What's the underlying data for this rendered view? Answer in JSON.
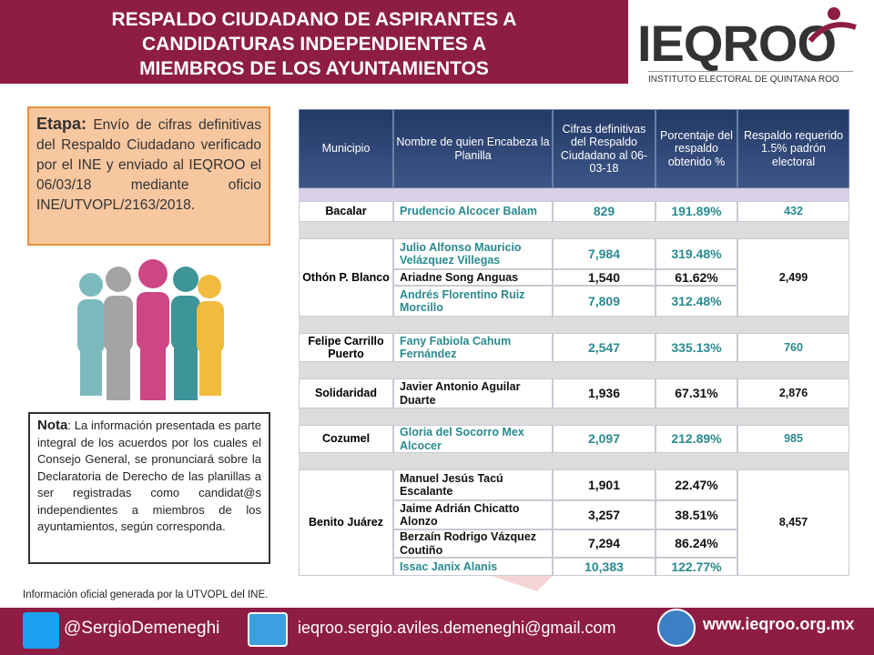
{
  "header": {
    "title": [
      "RESPALDO CIUDADANO DE ASPIRANTES  A",
      "CANDIDATURAS INDEPENDIENTES A",
      "MIEMBROS DE LOS AYUNTAMIENTOS"
    ],
    "logo": "IEQROO",
    "logo_subtitle": "INSTITUTO ELECTORAL DE QUINTANA ROO"
  },
  "etapa": {
    "label": "Etapa:",
    "text": "Envío de cifras definitivas del Respaldo Ciudadano verificado por el INE y enviado al IEQROO el 06/03/18 mediante oficio INE/UTVOPL/2163/2018."
  },
  "nota": {
    "label": "Nota",
    "text": ": La información presentada es parte integral de los acuerdos por los cuales el Consejo General, se pronunciará sobre la Declaratoria de Derecho de las planillas a ser registradas como candidat@s independientes a miembros de los ayuntamientos, según corresponda."
  },
  "table": {
    "headers": [
      "Municipio",
      "Nombre de quien Encabeza la Planilla",
      "Cifras definitivas del Respaldo Ciudadano al 06-03-18",
      "Porcentaje del respaldo obtenido %",
      "Respaldo requerido 1.5% padrón electoral"
    ],
    "groups": [
      {
        "municipio": "Bacalar",
        "respaldo": "432",
        "candidates": [
          {
            "nombre": "Prudencio Alcocer Balam",
            "cifras": "829",
            "porcentaje": "191.89%",
            "color": "#2a8a8f"
          }
        ]
      },
      {
        "municipio": "Othón P. Blanco",
        "respaldo": "2,499",
        "candidates": [
          {
            "nombre": "Julio Alfonso Mauricio Velázquez Villegas",
            "cifras": "7,984",
            "porcentaje": "319.48%",
            "color": "#2a8a8f"
          },
          {
            "nombre": "Ariadne Song Anguas",
            "cifras": "1,540",
            "porcentaje": "61.62%",
            "color": "#111111"
          },
          {
            "nombre": "Andrés Florentino Ruiz Morcillo",
            "cifras": "7,809",
            "porcentaje": "312.48%",
            "color": "#2a8a8f"
          }
        ]
      },
      {
        "municipio": "Felipe Carrillo Puerto",
        "respaldo": "760",
        "candidates": [
          {
            "nombre": "Fany Fabiola Cahum Fernández",
            "cifras": "2,547",
            "porcentaje": "335.13%",
            "color": "#2a8a8f"
          }
        ]
      },
      {
        "municipio": "Solidaridad",
        "respaldo": "2,876",
        "candidates": [
          {
            "nombre": "Javier Antonio Aguilar Duarte",
            "cifras": "1,936",
            "porcentaje": "67.31%",
            "color": "#111111"
          }
        ]
      },
      {
        "municipio": "Cozumel",
        "respaldo": "985",
        "candidates": [
          {
            "nombre": "Gloria del Socorro Mex Alcocer",
            "cifras": "2,097",
            "porcentaje": "212.89%",
            "color": "#2a8a8f"
          }
        ]
      },
      {
        "municipio": "Benito Juárez",
        "respaldo": "8,457",
        "candidates": [
          {
            "nombre": "Manuel Jesús Tacú Escalante",
            "cifras": "1,901",
            "porcentaje": "22.47%",
            "color": "#111111"
          },
          {
            "nombre": "Jaime Adrián Chicatto Alonzo",
            "cifras": "3,257",
            "porcentaje": "38.51%",
            "color": "#111111"
          },
          {
            "nombre": "Berzaín Rodrigo Vázquez Coutiño",
            "cifras": "7,294",
            "porcentaje": "86.24%",
            "color": "#111111"
          },
          {
            "nombre": "Issac Janix Alanis",
            "cifras": "10,383",
            "porcentaje": "122.77%",
            "color": "#2a8a8f"
          }
        ]
      }
    ]
  },
  "source": "Información oficial generada por  la UTVOPL del INE.",
  "footer": {
    "twitter": "@SergioDemeneghi",
    "email": "ieqroo.sergio.aviles.demeneghi@gmail.com",
    "web": "www.ieqroo.org.mx"
  }
}
